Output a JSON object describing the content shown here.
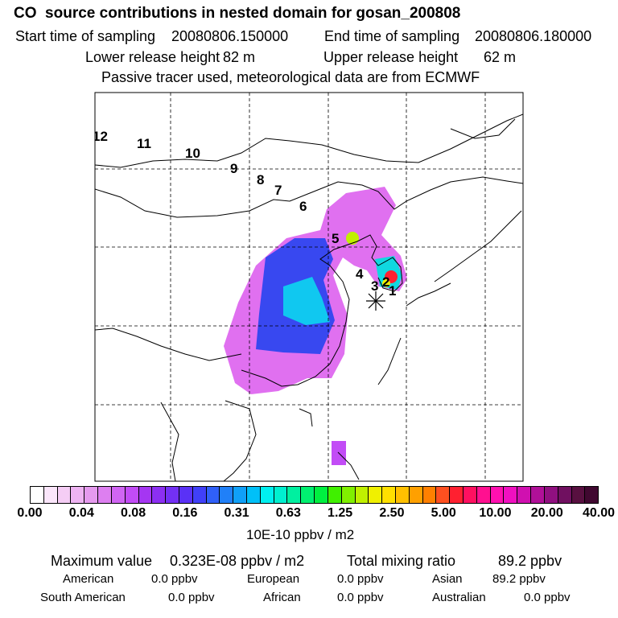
{
  "header": {
    "title": "CO  source contributions in nested domain for gosan_200808",
    "start_label": "Start time of sampling",
    "start_value": "20080806.150000",
    "end_label": "End time of sampling",
    "end_value": "20080806.180000",
    "lower_label": "Lower release height",
    "lower_value": "82 m",
    "upper_label": "Upper release height",
    "upper_value": "62 m",
    "note": "Passive tracer used, meteorological data are from ECMWF"
  },
  "map": {
    "track_labels": [
      "12",
      "11",
      "10",
      "9",
      "8",
      "7",
      "6",
      "5",
      "4",
      "3",
      "2",
      "1"
    ],
    "receptor_marker": "asterisk",
    "grid": "dashed"
  },
  "colorbar": {
    "colors": [
      "#ffffff",
      "#fbe6fb",
      "#f5cdf5",
      "#eeb3f2",
      "#e59aee",
      "#dd7ff0",
      "#d065f3",
      "#c24cf6",
      "#a536f2",
      "#8c2ff2",
      "#7330f4",
      "#5a31f6",
      "#4040f8",
      "#3060f8",
      "#2080f8",
      "#10a0f8",
      "#00c0f8",
      "#00f0f0",
      "#00f0d0",
      "#00f0a0",
      "#00f070",
      "#00f040",
      "#40f000",
      "#80f000",
      "#c0f000",
      "#f0f000",
      "#ffe000",
      "#ffc000",
      "#ffa000",
      "#ff8000",
      "#ff5020",
      "#ff2030",
      "#ff1060",
      "#ff1090",
      "#ff10b0",
      "#f010c0",
      "#d010b0",
      "#b01098",
      "#901080",
      "#701060",
      "#581040",
      "#400830"
    ],
    "tick_labels": [
      "0.00",
      "0.04",
      "0.08",
      "0.16",
      "0.31",
      "0.63",
      "1.25",
      "2.50",
      "5.00",
      "10.00",
      "20.00",
      "40.00"
    ],
    "unit": "10E-10 ppbv / m2"
  },
  "summary": {
    "max_label": "Maximum value",
    "max_value": "0.323E-08 ppbv / m2",
    "total_label": "Total mixing ratio",
    "total_value": "89.2 ppbv"
  },
  "regions": [
    {
      "name": "American",
      "value": "0.0 ppbv"
    },
    {
      "name": "European",
      "value": "0.0 ppbv"
    },
    {
      "name": "Asian",
      "value": "89.2 ppbv"
    },
    {
      "name": "South American",
      "value": "0.0 ppbv"
    },
    {
      "name": "African",
      "value": "0.0 ppbv"
    },
    {
      "name": "Australian",
      "value": "0.0 ppbv"
    }
  ]
}
